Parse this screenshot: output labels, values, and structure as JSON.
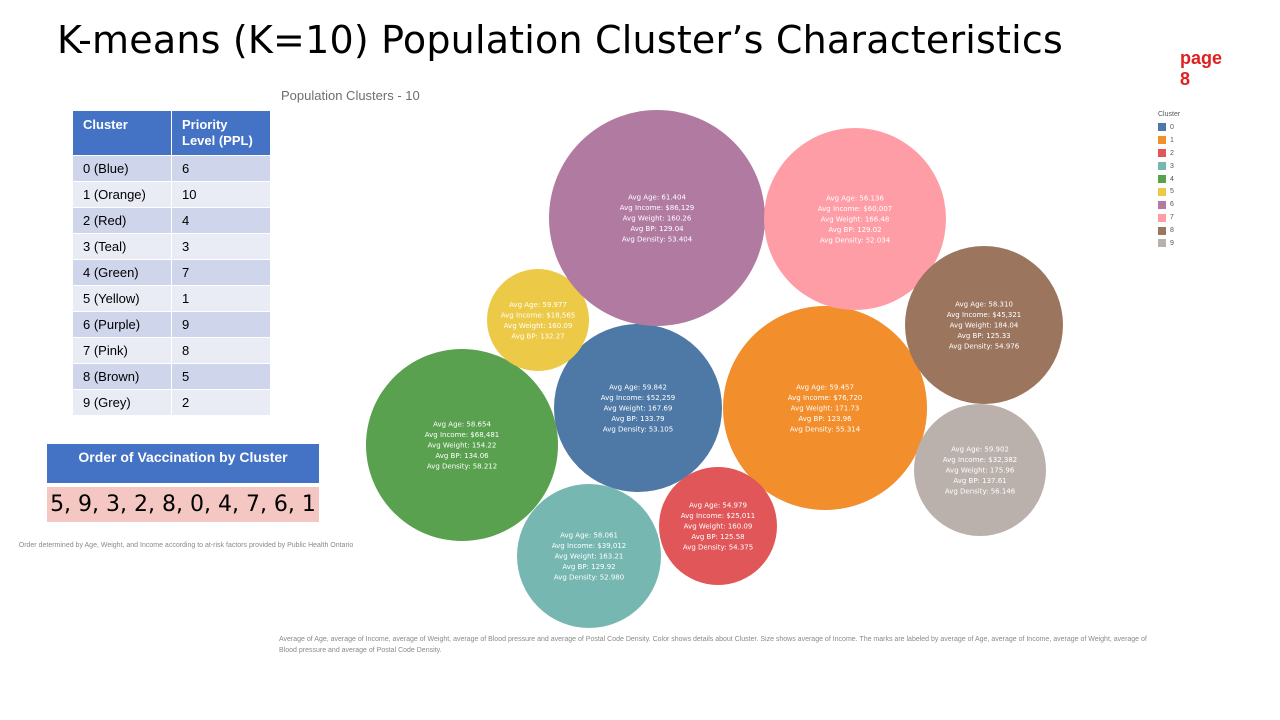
{
  "title": "K-means (K=10) Population Cluster’s Characteristics",
  "page_label": "page\n8",
  "chart_subtitle": "Population Clusters - 10",
  "priority_table": {
    "headers": [
      "Cluster",
      "Priority Level (PPL)"
    ],
    "rows": [
      [
        "0 (Blue)",
        "6"
      ],
      [
        "1 (Orange)",
        "10"
      ],
      [
        "2 (Red)",
        "4"
      ],
      [
        "3 (Teal)",
        "3"
      ],
      [
        "4 (Green)",
        "7"
      ],
      [
        "5 (Yellow)",
        "1"
      ],
      [
        "6 (Purple)",
        "9"
      ],
      [
        "7 (Pink)",
        "8"
      ],
      [
        "8 (Brown)",
        "5"
      ],
      [
        "9 (Grey)",
        "2"
      ]
    ]
  },
  "vaccination_order": {
    "heading": "Order of Vaccination by Cluster",
    "value": "5, 9, 3, 2, 8, 0, 4, 7, 6, 1",
    "note": "Order determined by Age, Weight, and Income according to at-risk factors provided by Public Health Ontario"
  },
  "caption": "Average of Age, average of Income, average of Weight, average of Blood pressure and average of Postal Code Density.  Color shows details about Cluster.  Size shows average of Income.  The marks are labeled by average of Age, average of Income, average of Weight, average of Blood pressure and average of Postal Code Density.",
  "chart_data": {
    "type": "bubble",
    "title": "Population Clusters - 10",
    "size_field": "Avg Income",
    "legend": {
      "title": "Cluster",
      "position": "top-right"
    },
    "series": [
      {
        "cluster": "0",
        "color": "#4e79a7",
        "avg_age": "59.842",
        "avg_income": "$52,259",
        "avg_weight": "167.69",
        "avg_bp": "133.79",
        "avg_density": "53.105"
      },
      {
        "cluster": "1",
        "color": "#f28e2b",
        "avg_age": "59.457",
        "avg_income": "$76,720",
        "avg_weight": "171.73",
        "avg_bp": "123.96",
        "avg_density": "55.314"
      },
      {
        "cluster": "2",
        "color": "#e15759",
        "avg_age": "54.979",
        "avg_income": "$25,011",
        "avg_weight": "160.09",
        "avg_bp": "125.58",
        "avg_density": "54.375"
      },
      {
        "cluster": "3",
        "color": "#76b7b2",
        "avg_age": "58.061",
        "avg_income": "$39,012",
        "avg_weight": "163.21",
        "avg_bp": "129.92",
        "avg_density": "52.980"
      },
      {
        "cluster": "4",
        "color": "#59a14f",
        "avg_age": "58.654",
        "avg_income": "$68,481",
        "avg_weight": "154.22",
        "avg_bp": "134.06",
        "avg_density": "58.212"
      },
      {
        "cluster": "5",
        "color": "#edc948",
        "avg_age": "59.977",
        "avg_income": "$18,565",
        "avg_weight": "160.09",
        "avg_bp": "132.27",
        "avg_density": ""
      },
      {
        "cluster": "6",
        "color": "#b07aa1",
        "avg_age": "61.404",
        "avg_income": "$86,129",
        "avg_weight": "160.26",
        "avg_bp": "129.04",
        "avg_density": "53.404"
      },
      {
        "cluster": "7",
        "color": "#ff9da7",
        "avg_age": "56.136",
        "avg_income": "$60,007",
        "avg_weight": "166.48",
        "avg_bp": "129.02",
        "avg_density": "52.034"
      },
      {
        "cluster": "8",
        "color": "#9c755f",
        "avg_age": "58.310",
        "avg_income": "$45,321",
        "avg_weight": "184.04",
        "avg_bp": "125.33",
        "avg_density": "54.976"
      },
      {
        "cluster": "9",
        "color": "#bab0ac",
        "avg_age": "59.902",
        "avg_income": "$32,382",
        "avg_weight": "175.96",
        "avg_bp": "137.61",
        "avg_density": "56.146"
      }
    ]
  }
}
